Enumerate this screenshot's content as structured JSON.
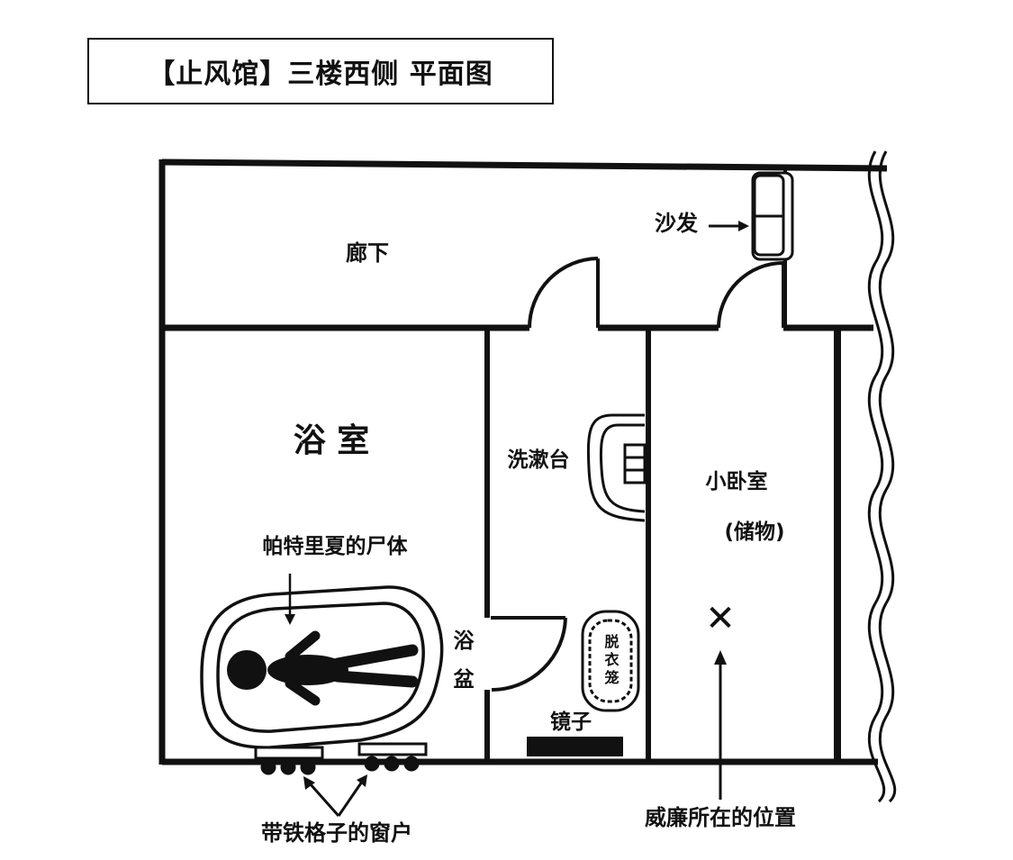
{
  "title": "【止风馆】三楼西侧 平面图",
  "labels": {
    "corridor": "廊下",
    "sofa": "沙发",
    "bathroom": "浴 室",
    "washbasin": "洗漱台",
    "storage_room_line1": "小卧室",
    "storage_room_line2": "(储物)",
    "bathtub_line1": "浴",
    "bathtub_line2": "盆",
    "body": "帕特里夏的尸体",
    "laundry_basket": "脱衣笼",
    "mirror": "镜子",
    "barred_windows": "带铁格子的窗户",
    "position_marker": "✕",
    "position_caption": "威廉所在的位置"
  }
}
